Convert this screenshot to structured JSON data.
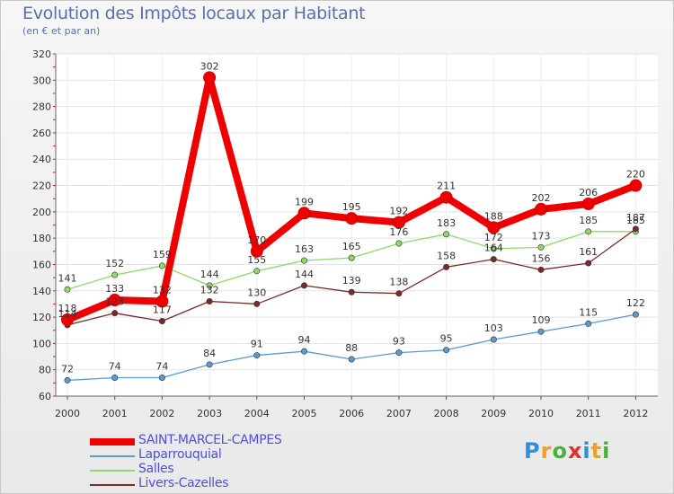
{
  "header": {
    "title": "Evolution des Impôts locaux par Habitant",
    "subtitle": "(en € et par an)"
  },
  "chart_data": {
    "type": "line",
    "title": "Evolution des Impôts locaux par Habitant",
    "subtitle": "(en € et par an)",
    "xlabel": "",
    "ylabel": "",
    "x": [
      "2000",
      "2001",
      "2002",
      "2003",
      "2004",
      "2005",
      "2006",
      "2007",
      "2008",
      "2009",
      "2010",
      "2011",
      "2012"
    ],
    "ylim": [
      60,
      320
    ],
    "yticks": [
      60,
      80,
      100,
      120,
      140,
      160,
      180,
      200,
      220,
      240,
      260,
      280,
      300,
      320
    ],
    "grid": true,
    "legend_position": "bottom-left",
    "series": [
      {
        "name": "SAINT-MARCEL-CAMPES",
        "color": "#ee0000",
        "values": [
          118,
          133,
          132,
          302,
          170,
          199,
          195,
          192,
          211,
          188,
          202,
          206,
          220
        ]
      },
      {
        "name": "Laparrouquial",
        "color": "#5a9bd0",
        "values": [
          72,
          74,
          74,
          84,
          91,
          94,
          88,
          93,
          95,
          103,
          109,
          115,
          122
        ]
      },
      {
        "name": "Salles",
        "color": "#8fd86b",
        "values": [
          141,
          152,
          159,
          144,
          155,
          163,
          165,
          176,
          183,
          172,
          173,
          185,
          185
        ]
      },
      {
        "name": "Livers-Cazelles",
        "color": "#7a2a2a",
        "values": [
          114,
          123,
          117,
          132,
          130,
          144,
          139,
          138,
          158,
          164,
          156,
          161,
          187
        ]
      }
    ]
  },
  "logo": {
    "letters": [
      "P",
      "r",
      "o",
      "x",
      "i",
      "t",
      "i"
    ],
    "colors": [
      "#2f8fd8",
      "#f0a020",
      "#4ab040",
      "#e0302a",
      "#2f8fd8",
      "#f0a020",
      "#4ab040"
    ]
  }
}
